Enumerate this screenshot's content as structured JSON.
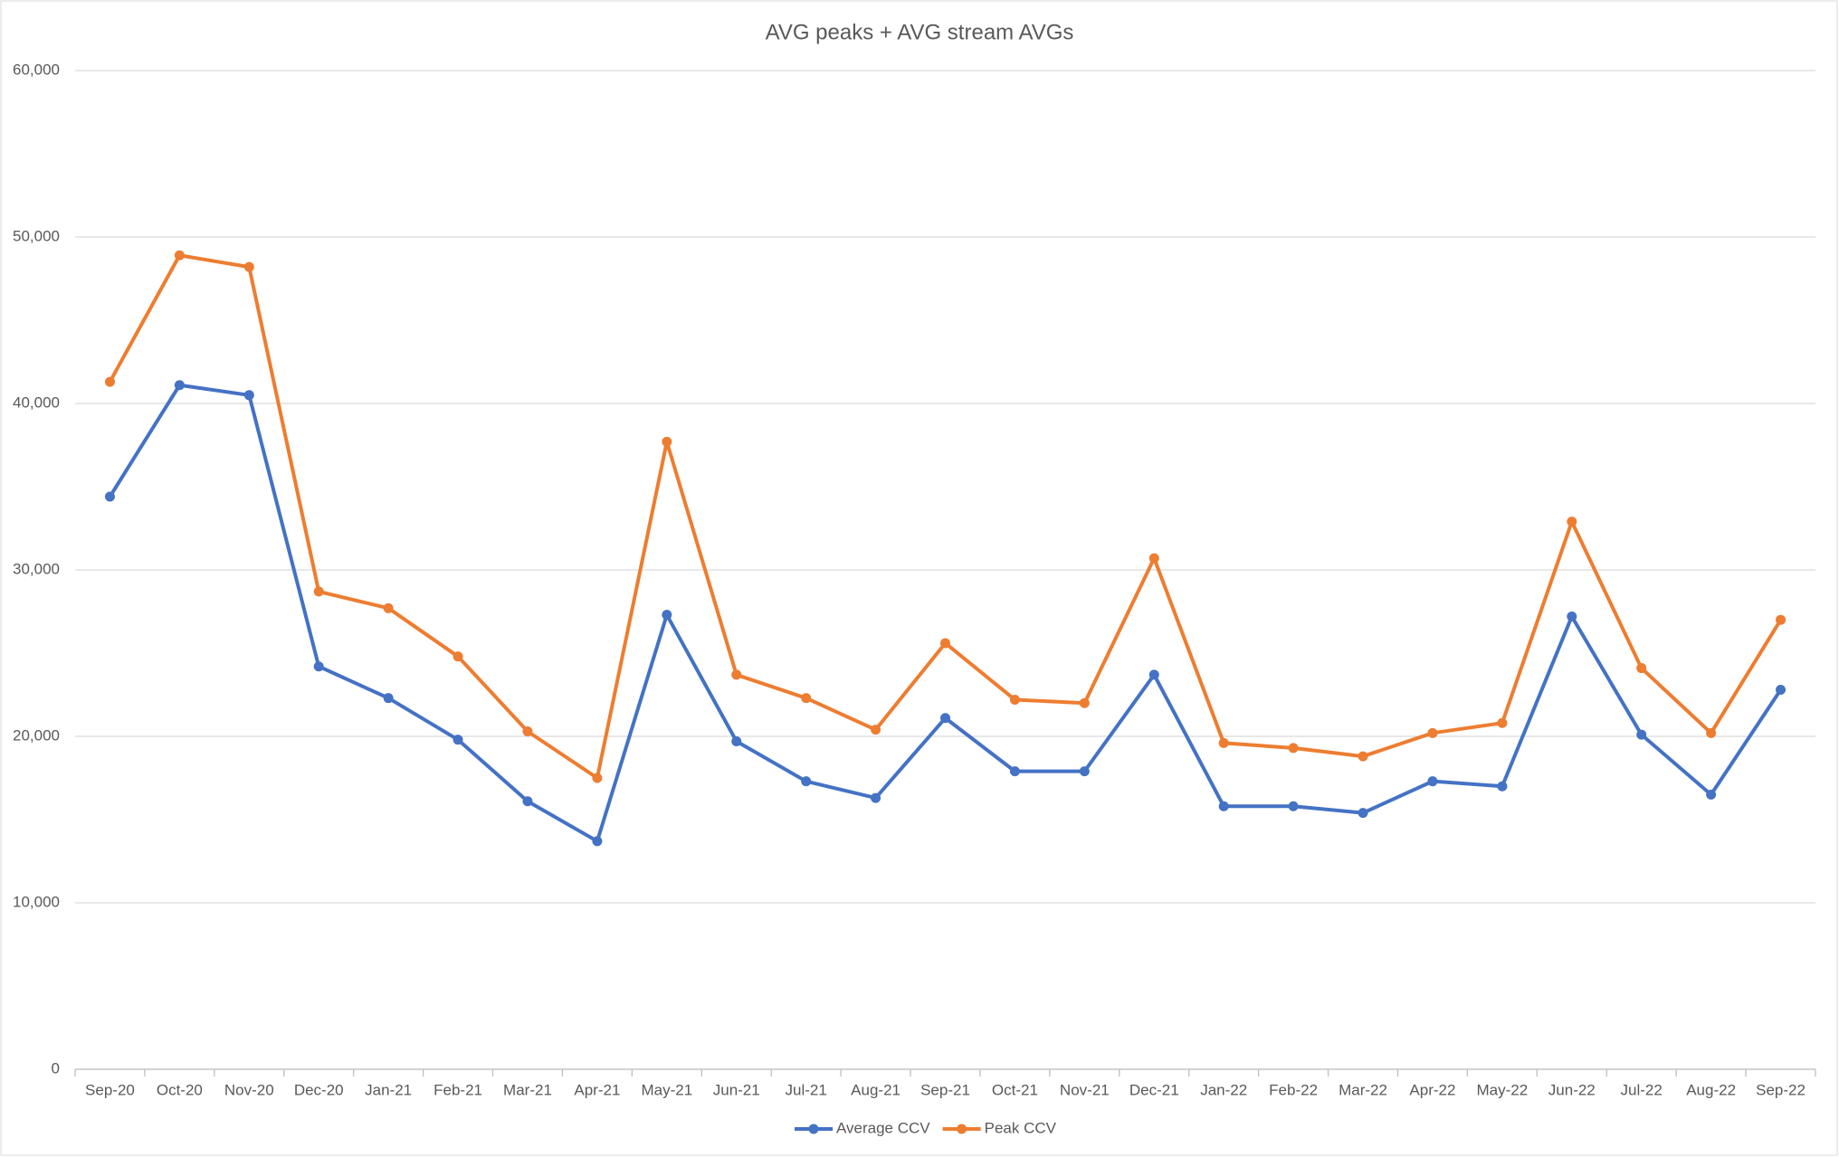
{
  "chart_data": {
    "type": "line",
    "title": "AVG peaks + AVG stream AVGs",
    "categories": [
      "Sep-20",
      "Oct-20",
      "Nov-20",
      "Dec-20",
      "Jan-21",
      "Feb-21",
      "Mar-21",
      "Apr-21",
      "May-21",
      "Jun-21",
      "Jul-21",
      "Aug-21",
      "Sep-21",
      "Oct-21",
      "Nov-21",
      "Dec-21",
      "Jan-22",
      "Feb-22",
      "Mar-22",
      "Apr-22",
      "May-22",
      "Jun-22",
      "Jul-22",
      "Aug-22",
      "Sep-22"
    ],
    "series": [
      {
        "name": "Average CCV",
        "color": "#4472c4",
        "values": [
          34400,
          41100,
          40500,
          24200,
          22300,
          19800,
          16100,
          13700,
          27300,
          19700,
          17300,
          16300,
          21100,
          17900,
          17900,
          23700,
          15800,
          15800,
          15400,
          17300,
          17000,
          27200,
          20100,
          16500,
          22800
        ]
      },
      {
        "name": "Peak CCV",
        "color": "#ed7d31",
        "values": [
          41300,
          48900,
          48200,
          28700,
          27700,
          24800,
          20300,
          17500,
          37700,
          23700,
          22300,
          20400,
          25600,
          22200,
          22000,
          30700,
          19600,
          19300,
          18800,
          20200,
          20800,
          32900,
          24100,
          20200,
          27000
        ]
      }
    ],
    "ylim": [
      0,
      60000
    ],
    "yticks": [
      0,
      {
        "value": 10000,
        "label": "10,000"
      },
      {
        "value": 20000,
        "label": "20,000"
      },
      {
        "value": 30000,
        "label": "30,000"
      },
      {
        "value": 40000,
        "label": "40,000"
      },
      {
        "value": 50000,
        "label": "50,000"
      },
      {
        "value": 60000,
        "label": "60,000"
      }
    ],
    "grid": true,
    "legend": "bottom"
  }
}
